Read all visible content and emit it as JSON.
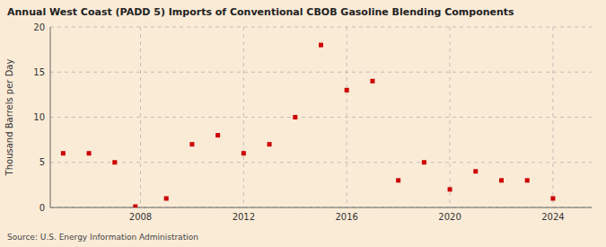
{
  "chart_data": {
    "type": "scatter",
    "title": "Annual West Coast (PADD 5) Imports of Conventional CBOB Gasoline Blending Components",
    "y_label": "Thousand Barrels per Day",
    "source": "Source: U.S. Energy Information Administration",
    "x": [
      2005,
      2006,
      2007,
      2007.8,
      2009,
      2010,
      2011,
      2012,
      2013,
      2014,
      2015,
      2016,
      2017,
      2018,
      2019,
      2020,
      2021,
      2022,
      2023,
      2024
    ],
    "values": [
      6,
      6,
      5,
      0.1,
      1,
      7,
      8,
      6,
      7,
      10,
      18,
      13,
      14,
      3,
      5,
      2,
      4,
      3,
      3,
      1
    ],
    "color": "#cc0000",
    "marker": "square",
    "xlim": [
      2004.5,
      2025.5
    ],
    "ylim": [
      0,
      20
    ],
    "xticks": [
      2008,
      2012,
      2016,
      2020,
      2024
    ],
    "yticks": [
      0,
      5,
      10,
      15,
      20
    ],
    "grid": true
  }
}
